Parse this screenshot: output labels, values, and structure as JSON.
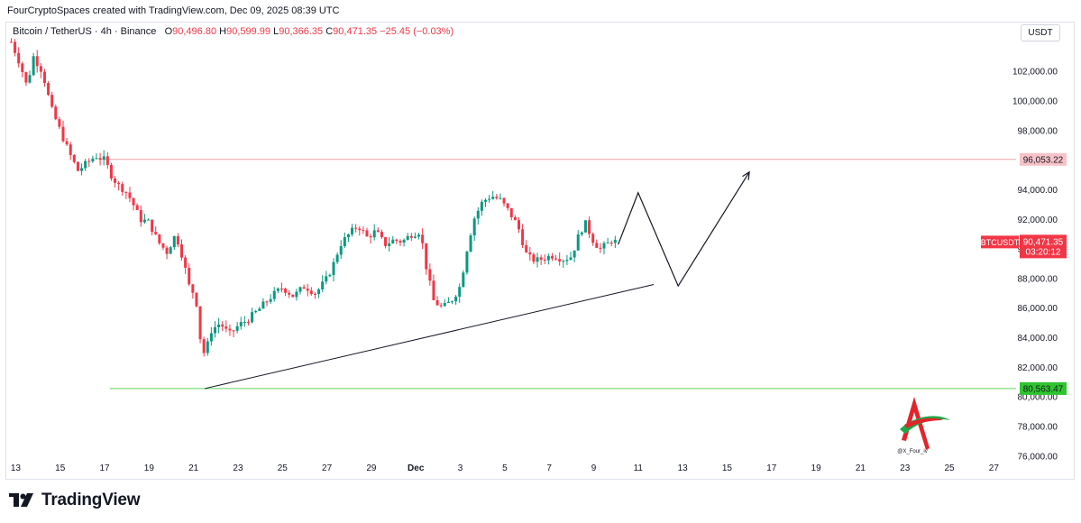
{
  "header_text": "FourCryptoSpaces created with TradingView.com, Dec 09, 2025 08:39 UTC",
  "legend": {
    "symbol": "Bitcoin / TetherUS · 4h · Binance",
    "o_label": "O",
    "o": "90,496.80",
    "h_label": "H",
    "h": "90,599.99",
    "l_label": "L",
    "l": "90,366.35",
    "c_label": "C",
    "c": "90,471.35",
    "change": "−25.45 (−0.03%)"
  },
  "currency": "USDT",
  "watermark_text": "@X_Four_iv",
  "footer_brand": "TradingView",
  "colors": {
    "up": "#089981",
    "down": "#f23645",
    "resistance": "#f7a1a8",
    "support": "#5fd35f",
    "support_label": "#2ec52e"
  },
  "chart_data": {
    "type": "candlestick",
    "instrument": "BTCUSDT",
    "timeframe": "4h",
    "ylim": [
      75500,
      105000
    ],
    "xlim_days": [
      12.7,
      58
    ],
    "y_ticks": [
      "76,000.00",
      "78,000.00",
      "80,000.00",
      "82,000.00",
      "84,000.00",
      "86,000.00",
      "88,000.00",
      "90,000.00",
      "92,000.00",
      "94,000.00",
      "98,000.00",
      "100,000.00",
      "102,000.00"
    ],
    "y_tick_values": [
      76000,
      78000,
      80000,
      82000,
      84000,
      86000,
      88000,
      90000,
      92000,
      94000,
      98000,
      100000,
      102000
    ],
    "x_ticks": [
      {
        "label": "13",
        "day": 13
      },
      {
        "label": "15",
        "day": 15
      },
      {
        "label": "17",
        "day": 17
      },
      {
        "label": "19",
        "day": 19
      },
      {
        "label": "21",
        "day": 21
      },
      {
        "label": "23",
        "day": 23
      },
      {
        "label": "25",
        "day": 25
      },
      {
        "label": "27",
        "day": 27
      },
      {
        "label": "29",
        "day": 29
      },
      {
        "label": "Dec",
        "day": 31
      },
      {
        "label": "3",
        "day": 33
      },
      {
        "label": "5",
        "day": 35
      },
      {
        "label": "7",
        "day": 37
      },
      {
        "label": "9",
        "day": 39
      },
      {
        "label": "11",
        "day": 41
      },
      {
        "label": "13",
        "day": 43
      },
      {
        "label": "15",
        "day": 45
      },
      {
        "label": "17",
        "day": 47
      },
      {
        "label": "19",
        "day": 49
      },
      {
        "label": "21",
        "day": 51
      },
      {
        "label": "23",
        "day": 53
      },
      {
        "label": "25",
        "day": 55
      },
      {
        "label": "27",
        "day": 57
      }
    ],
    "price_path": [
      [
        12.8,
        104000
      ],
      [
        13.2,
        102500
      ],
      [
        13.5,
        101000
      ],
      [
        13.8,
        103000
      ],
      [
        14.2,
        102000
      ],
      [
        14.6,
        99500
      ],
      [
        15.0,
        98000
      ],
      [
        15.4,
        96500
      ],
      [
        15.8,
        95300
      ],
      [
        16.2,
        95800
      ],
      [
        16.6,
        96300
      ],
      [
        17.0,
        96000
      ],
      [
        17.3,
        95000
      ],
      [
        17.6,
        94300
      ],
      [
        17.9,
        94000
      ],
      [
        18.2,
        93300
      ],
      [
        18.6,
        92000
      ],
      [
        19.0,
        91800
      ],
      [
        19.4,
        90500
      ],
      [
        19.8,
        89800
      ],
      [
        20.2,
        91000
      ],
      [
        20.5,
        89500
      ],
      [
        20.8,
        87500
      ],
      [
        21.1,
        86800
      ],
      [
        21.3,
        84000
      ],
      [
        21.5,
        82800
      ],
      [
        21.8,
        84500
      ],
      [
        22.2,
        85000
      ],
      [
        22.6,
        84200
      ],
      [
        23.0,
        84800
      ],
      [
        23.5,
        85300
      ],
      [
        24.0,
        86000
      ],
      [
        24.5,
        86800
      ],
      [
        25.0,
        87400
      ],
      [
        25.5,
        86800
      ],
      [
        26.0,
        87500
      ],
      [
        26.5,
        87000
      ],
      [
        27.0,
        88000
      ],
      [
        27.3,
        89000
      ],
      [
        27.6,
        90300
      ],
      [
        28.0,
        91000
      ],
      [
        28.4,
        91600
      ],
      [
        28.8,
        90800
      ],
      [
        29.2,
        91200
      ],
      [
        29.6,
        90300
      ],
      [
        30.0,
        90600
      ],
      [
        30.4,
        90500
      ],
      [
        30.8,
        91000
      ],
      [
        31.2,
        91200
      ],
      [
        31.5,
        88500
      ],
      [
        31.8,
        86500
      ],
      [
        32.2,
        86000
      ],
      [
        32.6,
        86500
      ],
      [
        33.0,
        87500
      ],
      [
        33.3,
        90000
      ],
      [
        33.6,
        92000
      ],
      [
        34.0,
        93200
      ],
      [
        34.4,
        93600
      ],
      [
        34.8,
        93300
      ],
      [
        35.2,
        92500
      ],
      [
        35.6,
        91500
      ],
      [
        36.0,
        89500
      ],
      [
        36.4,
        89200
      ],
      [
        36.8,
        89400
      ],
      [
        37.2,
        89600
      ],
      [
        37.6,
        89300
      ],
      [
        38.0,
        89500
      ],
      [
        38.3,
        90800
      ],
      [
        38.6,
        91800
      ],
      [
        39.0,
        90500
      ],
      [
        39.3,
        90000
      ],
      [
        39.6,
        90300
      ],
      [
        39.8,
        90600
      ],
      [
        40.0,
        90471
      ]
    ],
    "resistance": {
      "price": 96053.22,
      "label": "96,053.22"
    },
    "support": {
      "price": 80563.47,
      "label": "80,563.47"
    },
    "last_price": {
      "symbol": "BTCUSDT",
      "price": 90471.35,
      "label": "90,471.35",
      "countdown": "03:20:12"
    },
    "trendline": [
      [
        21.5,
        80563.47
      ],
      [
        41.7,
        87600
      ]
    ],
    "projection": [
      [
        40.1,
        90300
      ],
      [
        41.0,
        93800
      ],
      [
        42.8,
        87500
      ],
      [
        46.0,
        95200
      ]
    ]
  }
}
